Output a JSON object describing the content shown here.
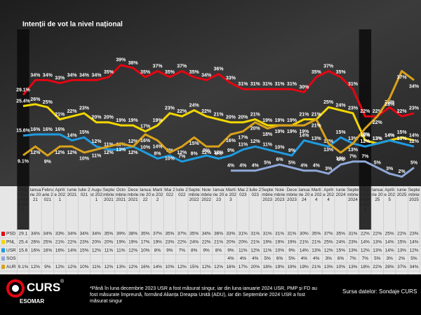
{
  "chart_data": {
    "type": "line",
    "title": "Intenții de vot la nivel național",
    "categories": [
      "Alegeri Decembrie 2020",
      "Ianuarie 2021",
      "Februarie 2021",
      "Aprilie 2021",
      "Iunie 2021",
      "Iulie 2021",
      "August 2021",
      "Septembrie 2021",
      "Octombrie 2021",
      "Decembrie 2021",
      "Ianuarie 2022",
      "Martie 2022",
      "Mai 2022",
      "Iulie 2022",
      "Septembrie 2022",
      "Noiembrie 2022",
      "Ianuarie 2023",
      "Martie 2023",
      "Mai 2023",
      "Iulie 2023",
      "Septembrie 2023",
      "Noiembrie 2023",
      "Decembrie 2023",
      "Ianuarie 2024",
      "Martie 2024",
      "Aprilie 2024",
      "Iunie 2024",
      "Septembrie 2024",
      "Alegeri Decembrie 2024",
      "Ianuarie 2025",
      "Aprilie 2025",
      "Iunie 2025",
      "Septembrie 2025"
    ],
    "ylim": [
      0,
      45
    ],
    "series": [
      {
        "name": "PSD",
        "color": "#e30613",
        "values": [
          29.1,
          34,
          34,
          33,
          34,
          34,
          34,
          35,
          39,
          38,
          35,
          37,
          35,
          37,
          35,
          34,
          36,
          33,
          31,
          31,
          31,
          31,
          31,
          30,
          35,
          37,
          35,
          31,
          22,
          22,
          25,
          22,
          23
        ],
        "value_labels": [
          "29.1%",
          "34%",
          "34%",
          "33%",
          "34%",
          "34%",
          "34%",
          "35%",
          "39%",
          "38%",
          "35%",
          "37%",
          "35%",
          "37%",
          "35%",
          "34%",
          "36%",
          "33%",
          "31%",
          "31%",
          "31%",
          "31%",
          "31%",
          "30%",
          "35%",
          "37%",
          "35%",
          "31%",
          "22%",
          "22%",
          "25%",
          "22%",
          "23%"
        ]
      },
      {
        "name": "PNL",
        "color": "#f2d600",
        "values": [
          25.4,
          26,
          25,
          21,
          22,
          23,
          20,
          20,
          19,
          19,
          17,
          19,
          23,
          22,
          24,
          22,
          21,
          20,
          20,
          21,
          19,
          19,
          19,
          21,
          21,
          25,
          24,
          23,
          14,
          13,
          14,
          15,
          14
        ],
        "value_labels": [
          "25.4%",
          "26%",
          "25%",
          "21%",
          "22%",
          "23%",
          "20%",
          "20%",
          "19%",
          "19%",
          "17%",
          "19%",
          "23%",
          "22%",
          "24%",
          "22%",
          "21%",
          "20%",
          "20%",
          "21%",
          "19%",
          "19%",
          "19%",
          "21%",
          "21%",
          "25%",
          "24%",
          "23%",
          "14%",
          "13%",
          "14%",
          "15%",
          "14%"
        ]
      },
      {
        "name": "USR",
        "color": "#1e9be0",
        "values": [
          15.6,
          16,
          16,
          16,
          14,
          15,
          12,
          11,
          11,
          12,
          10,
          8,
          9,
          7,
          8,
          9,
          8,
          9,
          11,
          12,
          11,
          10,
          9,
          14,
          13,
          12,
          15,
          13,
          12,
          13,
          14,
          13,
          12
        ],
        "value_labels": [
          "15.6%",
          "16%",
          "16%",
          "16%",
          "14%",
          "15%",
          "12%",
          "11%",
          "11%",
          "12%",
          "10%",
          "8%",
          "9%",
          "7%",
          "8%",
          "9%",
          "8%",
          "9%",
          "11%",
          "12%",
          "11%",
          "10%",
          "9%",
          "14%",
          "13%",
          "12%",
          "15%",
          "13%",
          "12%",
          "13%",
          "14%",
          "13%",
          "12%"
        ]
      },
      {
        "name": "SOS",
        "color": "#8fa8d8",
        "values": [
          null,
          null,
          null,
          null,
          null,
          null,
          null,
          null,
          null,
          null,
          null,
          null,
          null,
          null,
          null,
          null,
          null,
          4,
          4,
          4,
          5,
          6,
          5,
          4,
          4,
          3,
          6,
          7,
          7,
          5,
          3,
          2,
          5
        ],
        "value_labels": [
          null,
          null,
          null,
          null,
          null,
          null,
          null,
          null,
          null,
          null,
          null,
          null,
          null,
          null,
          null,
          null,
          null,
          "4%",
          "4%",
          "4%",
          "5%",
          "6%",
          "5%",
          "4%",
          "4%",
          "3%",
          "6%",
          "7%",
          "7%",
          "5%",
          "3%",
          "2%",
          "5%"
        ]
      },
      {
        "name": "AUR",
        "color": "#d9a21b",
        "values": [
          9.1,
          12,
          9,
          12,
          12,
          10,
          11,
          12,
          13,
          12,
          16,
          14,
          10,
          12,
          15,
          12,
          12,
          16,
          17,
          20,
          18,
          19,
          19,
          19,
          21,
          13,
          10,
          13,
          18,
          22,
          28,
          37,
          34
        ],
        "value_labels": [
          "9.1%",
          "12%",
          "9%",
          "12%",
          "12%",
          "10%",
          "11%",
          "12%",
          "13%",
          "12%",
          "16%",
          "14%",
          "10%",
          "12%",
          "15%",
          "12%",
          "12%",
          "16%",
          "17%",
          "20%",
          "18%",
          "19%",
          "19%",
          "19%",
          "21%",
          "13%",
          "10%",
          "13%",
          "18%",
          "22%",
          "28%",
          "37%",
          "34%"
        ]
      }
    ],
    "data_table": {
      "rows": [
        [
          "29.1",
          "34%",
          "34%",
          "33%",
          "34%",
          "34%",
          "34%",
          "35%",
          "39%",
          "38%",
          "35%",
          "37%",
          "35%",
          "37%",
          "35%",
          "34%",
          "36%",
          "33%",
          "31%",
          "31%",
          "31%",
          "31%",
          "31%",
          "30%",
          "35%",
          "37%",
          "35%",
          "31%",
          "22%",
          "22%",
          "25%",
          "22%",
          "23%"
        ],
        [
          "25.4",
          "26%",
          "25%",
          "21%",
          "22%",
          "23%",
          "20%",
          "20%",
          "19%",
          "19%",
          "17%",
          "19%",
          "23%",
          "22%",
          "24%",
          "22%",
          "21%",
          "20%",
          "20%",
          "21%",
          "19%",
          "19%",
          "19%",
          "21%",
          "21%",
          "25%",
          "24%",
          "23%",
          "14%",
          "13%",
          "14%",
          "15%",
          "14%"
        ],
        [
          "15.6",
          "16%",
          "16%",
          "16%",
          "14%",
          "15%",
          "12%",
          "11%",
          "11%",
          "12%",
          "10%",
          "8%",
          "9%",
          "7%",
          "8%",
          "9%",
          "8%",
          "9%",
          "11%",
          "12%",
          "11%",
          "10%",
          "9%",
          "14%",
          "13%",
          "12%",
          "15%",
          "13%",
          "12%",
          "13%",
          "14%",
          "13%",
          "12%"
        ],
        [
          null,
          null,
          null,
          null,
          null,
          null,
          null,
          null,
          null,
          null,
          null,
          null,
          null,
          null,
          null,
          null,
          null,
          "4%",
          "4%",
          "4%",
          "5%",
          "6%",
          "5%",
          "4%",
          "4%",
          "3%",
          "6%",
          "7%",
          "7%",
          "5%",
          "3%",
          "2%",
          "5%"
        ],
        [
          "9.1%",
          "12%",
          "9%",
          "12%",
          "12%",
          "10%",
          "11%",
          "12%",
          "13%",
          "12%",
          "16%",
          "14%",
          "10%",
          "12%",
          "15%",
          "12%",
          "12%",
          "16%",
          "17%",
          "20%",
          "18%",
          "19%",
          "19%",
          "19%",
          "21%",
          "13%",
          "10%",
          "13%",
          "18%",
          "22%",
          "28%",
          "37%",
          "34%"
        ]
      ]
    }
  },
  "footer": {
    "logo": "CURS",
    "registered": "®",
    "sub": "ESOMAR",
    "footnote": "*Până în luna decembrie 2023 USR a fost măsurat singur, iar din luna ianuarie 2024 USR, PMP și FD au fost măsurate împreună, formând Alianța Dreapta Unită (ADU), iar din Septembrie 2024 USR a fost măsurat singur",
    "source": "Sursa datelor: Sondaje CURS"
  }
}
